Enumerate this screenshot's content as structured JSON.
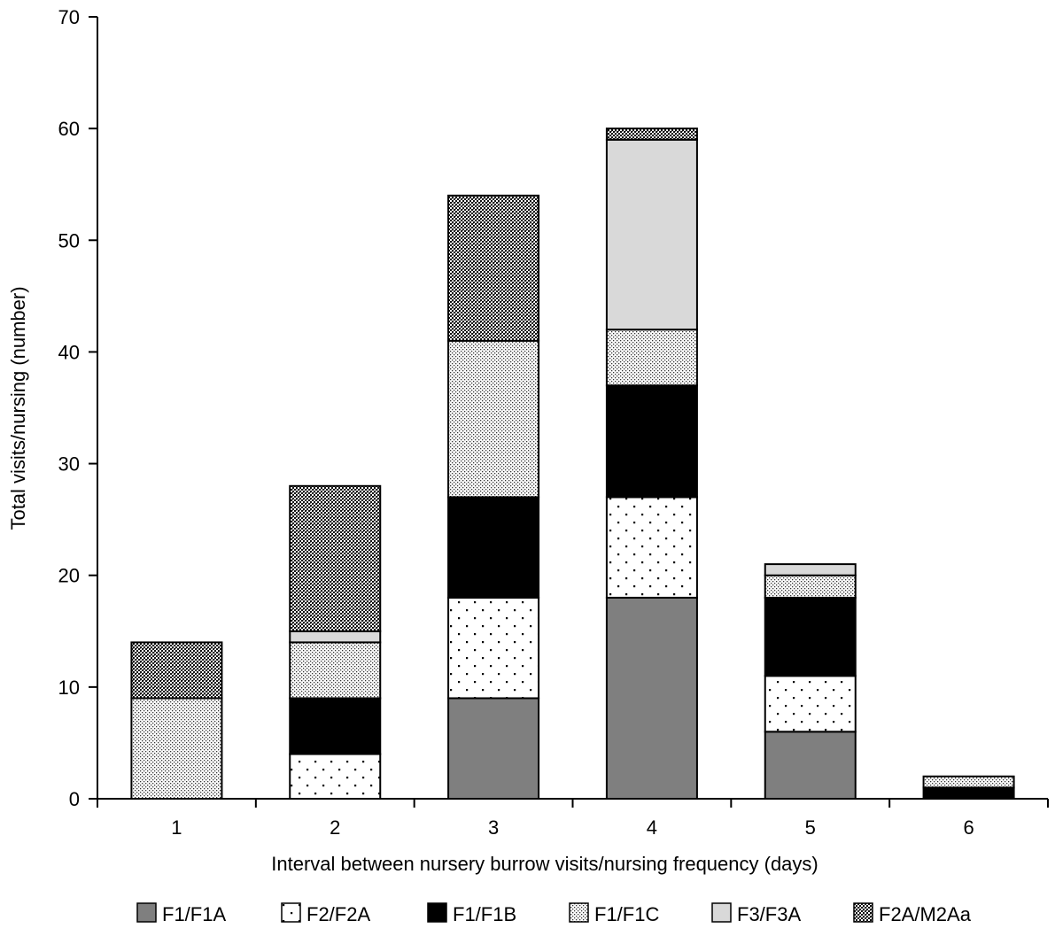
{
  "chart_data": {
    "type": "bar",
    "stacked": true,
    "title": "",
    "xlabel": "Interval between nursery burrow visits/nursing frequency (days)",
    "ylabel": "Total visits/nursing (number)",
    "ylim": [
      0,
      70
    ],
    "yticks": [
      0,
      10,
      20,
      30,
      40,
      50,
      60,
      70
    ],
    "categories": [
      "1",
      "2",
      "3",
      "4",
      "5",
      "6"
    ],
    "legend_position": "bottom",
    "grid": false,
    "series": [
      {
        "name": "F1/F1A",
        "fill": "#7f7f7f",
        "pattern": "solid-gray",
        "values": [
          0,
          0,
          9,
          18,
          6,
          0
        ]
      },
      {
        "name": "F2/F2A",
        "fill": "#ffffff",
        "pattern": "sparse-dots",
        "values": [
          0,
          4,
          9,
          9,
          5,
          0
        ]
      },
      {
        "name": "F1/F1B",
        "fill": "#000000",
        "pattern": "solid-black",
        "values": [
          0,
          5,
          9,
          10,
          7,
          1
        ]
      },
      {
        "name": "F1/F1C",
        "fill": "#ffffff",
        "pattern": "dense-dots",
        "values": [
          9,
          5,
          14,
          5,
          2,
          1
        ]
      },
      {
        "name": "F3/F3A",
        "fill": "#d9d9d9",
        "pattern": "solid-light",
        "values": [
          0,
          1,
          0,
          17,
          1,
          0
        ]
      },
      {
        "name": "F2A/M2Aa",
        "fill": "#555555",
        "pattern": "checker",
        "values": [
          5,
          13,
          13,
          1,
          0,
          0
        ]
      }
    ]
  }
}
